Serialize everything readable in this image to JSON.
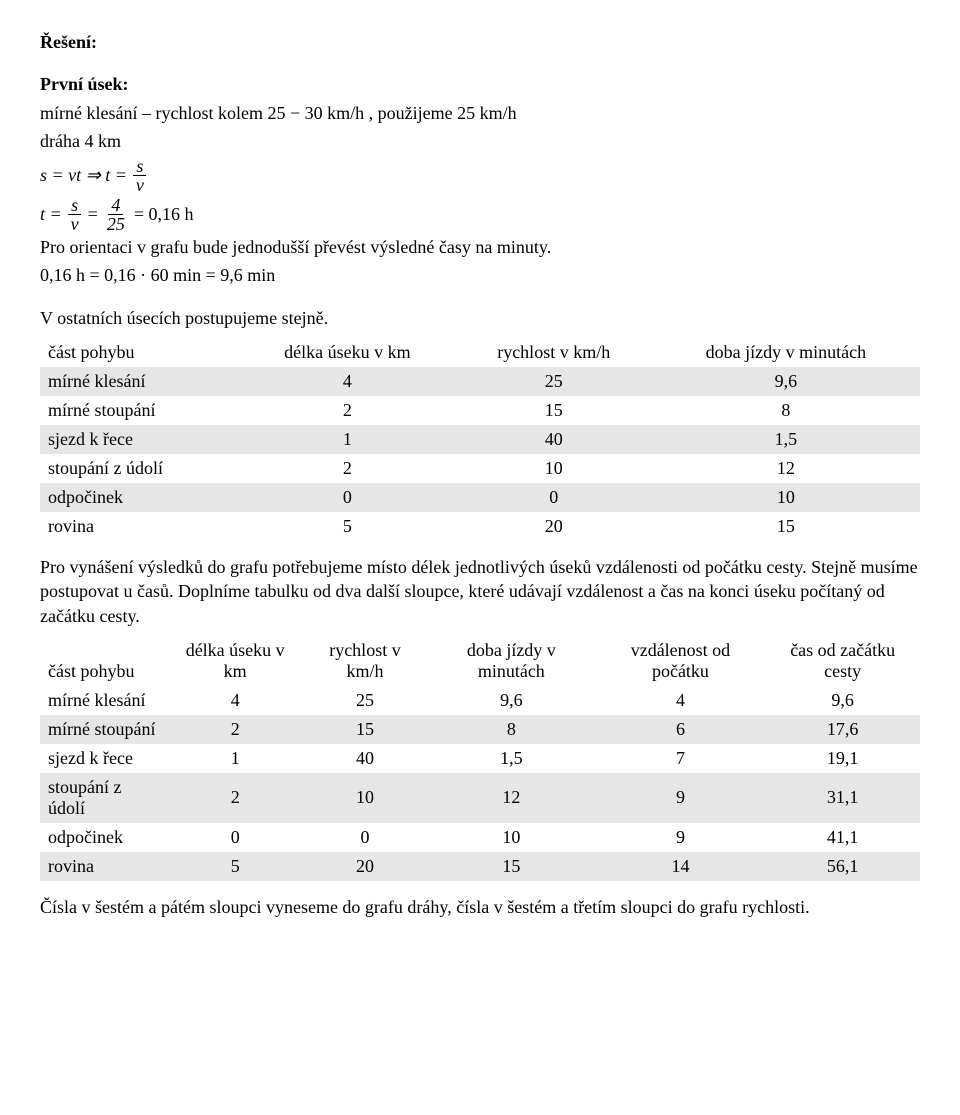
{
  "heading_reseni": "Řešení:",
  "heading_prvni_usek": "První úsek:",
  "line_mirne": "mírné klesání – rychlost kolem 25 − 30 km/h , použijeme 25 km/h",
  "line_draha": "dráha 4 km",
  "eq1": {
    "lhs": "s = vt ⇒ t =",
    "num": "s",
    "den": "v"
  },
  "eq2": {
    "pre": "t =",
    "f1n": "s",
    "f1d": "v",
    "mid": "=",
    "f2n": "4",
    "f2d": "25",
    "post": "= 0,16 h"
  },
  "line_orientaci": "Pro orientaci v grafu bude jednodušší převést výsledné časy na minuty.",
  "eq3": "0,16 h = 0,16 · 60 min = 9,6 min",
  "line_ostatni": "V ostatních úsecích postupujeme stejně.",
  "table1": {
    "headers": [
      "část pohybu",
      "délka úseku v km",
      "rychlost v km/h",
      "doba jízdy v minutách"
    ],
    "rows": [
      {
        "shade": true,
        "cells": [
          "mírné klesání",
          "4",
          "25",
          "9,6"
        ]
      },
      {
        "shade": false,
        "cells": [
          "mírné stoupání",
          "2",
          "15",
          "8"
        ]
      },
      {
        "shade": true,
        "cells": [
          "sjezd k řece",
          "1",
          "40",
          "1,5"
        ]
      },
      {
        "shade": false,
        "cells": [
          "stoupání z údolí",
          "2",
          "10",
          "12"
        ]
      },
      {
        "shade": true,
        "cells": [
          "odpočinek",
          "0",
          "0",
          "10"
        ]
      },
      {
        "shade": false,
        "cells": [
          "rovina",
          "5",
          "20",
          "15"
        ]
      }
    ]
  },
  "para1": "Pro vynášení výsledků do grafu potřebujeme místo délek jednotlivých úseků vzdálenosti od počátku cesty. Stejně musíme postupovat u časů. Doplníme tabulku od dva další sloupce, které udávají vzdálenost a čas na konci úseku počítaný od začátku cesty.",
  "table2": {
    "headers": [
      "část pohybu",
      "délka úseku v km",
      "rychlost v km/h",
      "doba jízdy v minutách",
      "vzdálenost od počátku",
      "čas od začátku cesty"
    ],
    "rows": [
      {
        "shade": false,
        "cells": [
          "mírné klesání",
          "4",
          "25",
          "9,6",
          "4",
          "9,6"
        ]
      },
      {
        "shade": true,
        "cells": [
          "mírné stoupání",
          "2",
          "15",
          "8",
          "6",
          "17,6"
        ]
      },
      {
        "shade": false,
        "cells": [
          "sjezd k řece",
          "1",
          "40",
          "1,5",
          "7",
          "19,1"
        ]
      },
      {
        "shade": true,
        "cells": [
          "stoupání z údolí",
          "2",
          "10",
          "12",
          "9",
          "31,1"
        ]
      },
      {
        "shade": false,
        "cells": [
          "odpočinek",
          "0",
          "0",
          "10",
          "9",
          "41,1"
        ]
      },
      {
        "shade": true,
        "cells": [
          "rovina",
          "5",
          "20",
          "15",
          "14",
          "56,1"
        ]
      }
    ]
  },
  "para2": "Čísla v šestém a pátém sloupci vyneseme do grafu dráhy, čísla v šestém a třetím sloupci do grafu rychlosti."
}
